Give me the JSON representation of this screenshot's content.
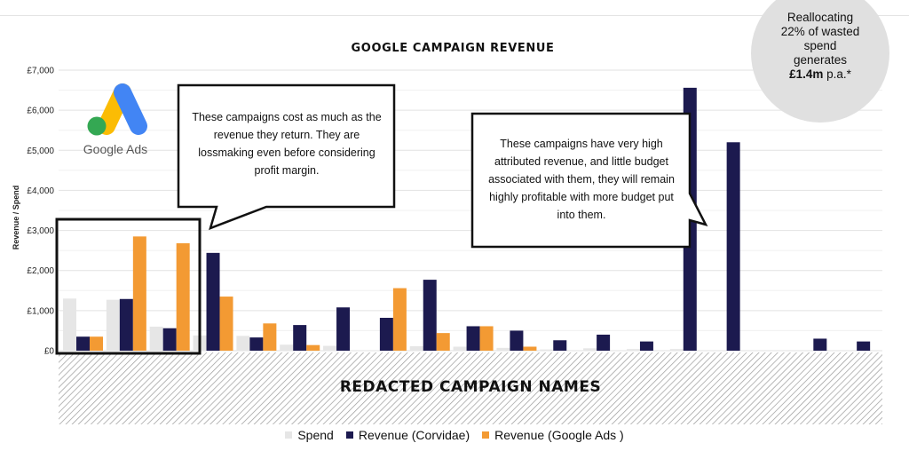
{
  "chart_data": {
    "type": "bar",
    "title": "GOOGLE CAMPAIGN REVENUE",
    "ylabel": "Revenue / Spend",
    "xlabel": "REDACTED CAMPAIGN NAMES",
    "ylim": [
      0,
      7000
    ],
    "yticks": [
      "£0",
      "£1,000",
      "£2,000",
      "£3,000",
      "£4,000",
      "£5,000",
      "£6,000",
      "£7,000"
    ],
    "grid": true,
    "legend_position": "bottom",
    "series": [
      {
        "name": "Spend",
        "color": "#e6e6e6",
        "values": [
          1300,
          1270,
          600,
          380,
          370,
          150,
          120,
          0,
          110,
          100,
          70,
          30,
          60,
          40,
          40,
          0,
          0,
          0,
          0
        ]
      },
      {
        "name": "Revenue (Corvidae)",
        "color": "#1c1a4f",
        "values": [
          350,
          1290,
          560,
          2440,
          330,
          640,
          1080,
          820,
          1770,
          610,
          500,
          260,
          400,
          230,
          6560,
          5200,
          0,
          300,
          230
        ]
      },
      {
        "name": "Revenue (Google Ads )",
        "color": "#f39a33",
        "values": [
          350,
          2850,
          2680,
          1350,
          680,
          140,
          0,
          1560,
          440,
          610,
          100,
          0,
          0,
          0,
          0,
          0,
          0,
          0,
          0
        ]
      }
    ]
  },
  "logo": {
    "text": "Google Ads"
  },
  "callout_left": "These campaigns cost as much as the revenue they return. They are lossmaking even before considering profit margin.",
  "callout_right": "These campaigns have very high attributed revenue, and little budget associated with them, they will remain highly profitable with more budget put into them.",
  "circle": {
    "line1": "Reallocating",
    "line2": "22% of wasted",
    "line3": "spend",
    "line4": "generates",
    "amount": "£1.4m",
    "suffix": " p.a.*"
  },
  "colors": {
    "spend": "#e6e6e6",
    "corvidae": "#1c1a4f",
    "google": "#f39a33",
    "circle": "#e0e0e0"
  }
}
